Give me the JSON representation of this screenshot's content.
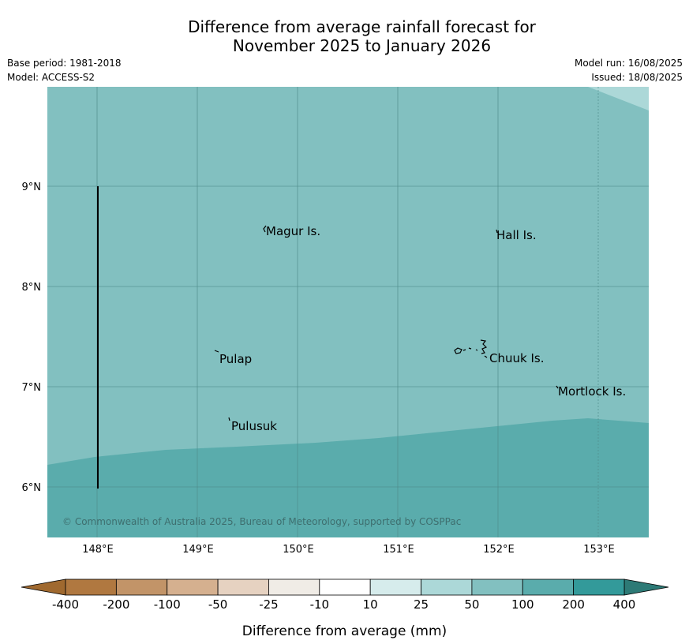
{
  "title_line1": "Difference from average rainfall forecast for",
  "title_line2": "November 2025 to January 2026",
  "meta": {
    "base_period": "Base period: 1981-2018",
    "model": "Model: ACCESS-S2",
    "model_run": "Model run: 16/08/2025",
    "issued": "Issued: 18/08/2025"
  },
  "copyright": "© Commonwealth of Australia 2025, Bureau of Meteorology, supported by COSPPac",
  "colors": {
    "class_10_25": "#d6ecec",
    "class_25_50": "#acd8d8",
    "class_50_100": "#82c0c0",
    "class_100_200": "#5aacac",
    "class_200_400": "#339a9a"
  },
  "map": {
    "lon_ticks": [
      "148°E",
      "149°E",
      "150°E",
      "151°E",
      "152°E",
      "153°E"
    ],
    "lat_ticks": [
      "9°N",
      "8°N",
      "7°N",
      "6°N"
    ],
    "places": [
      {
        "name": "Magur Is."
      },
      {
        "name": "Hall Is."
      },
      {
        "name": "Pulap"
      },
      {
        "name": "Chuuk Is."
      },
      {
        "name": "Mortlock Is."
      },
      {
        "name": "Pulusuk"
      }
    ]
  },
  "colorbar": {
    "label": "Difference from average (mm)",
    "ticks": [
      "-400",
      "-200",
      "-100",
      "-50",
      "-25",
      "-10",
      "10",
      "25",
      "50",
      "100",
      "200",
      "400"
    ],
    "colors": [
      "#b07840",
      "#c29468",
      "#d5b08f",
      "#e6d2c1",
      "#f0ece6",
      "#ffffff",
      "#d6ecec",
      "#acd8d8",
      "#82c0c0",
      "#5aacac",
      "#339a9a"
    ],
    "extend_low_color": "#a0692f",
    "extend_high_color": "#2d7a76"
  }
}
